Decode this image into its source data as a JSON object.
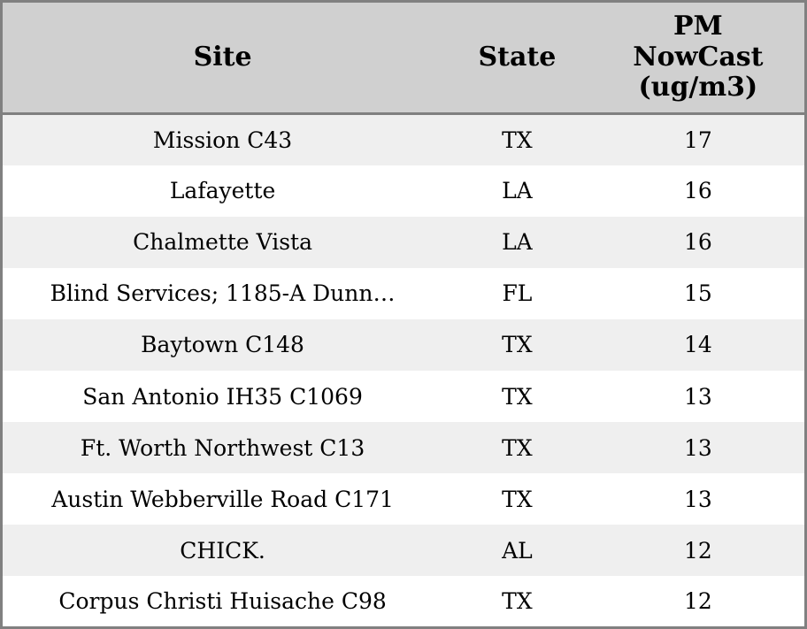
{
  "chart_data": {
    "type": "table",
    "columns": [
      "Site",
      "State",
      "PM NowCast (ug/m3)"
    ],
    "rows": [
      [
        "Mission C43",
        "TX",
        "17"
      ],
      [
        "Lafayette",
        "LA",
        "16"
      ],
      [
        "Chalmette Vista",
        "LA",
        "16"
      ],
      [
        "Blind Services; 1185-A Dunn…",
        "FL",
        "15"
      ],
      [
        "Baytown C148",
        "TX",
        "14"
      ],
      [
        "San Antonio IH35 C1069",
        "TX",
        "13"
      ],
      [
        "Ft. Worth Northwest C13",
        "TX",
        "13"
      ],
      [
        "Austin Webberville Road C171",
        "TX",
        "13"
      ],
      [
        "CHICK.",
        "AL",
        "12"
      ],
      [
        "Corpus Christi Huisache C98",
        "TX",
        "12"
      ]
    ],
    "layout": {
      "legend": "none",
      "grid": "off",
      "row_striping": true
    }
  },
  "colors": {
    "header_background": "#d0d0d0",
    "border": "#808080",
    "row_odd_background": "#efefef",
    "row_even_background": "#ffffff",
    "text": "#000000"
  }
}
